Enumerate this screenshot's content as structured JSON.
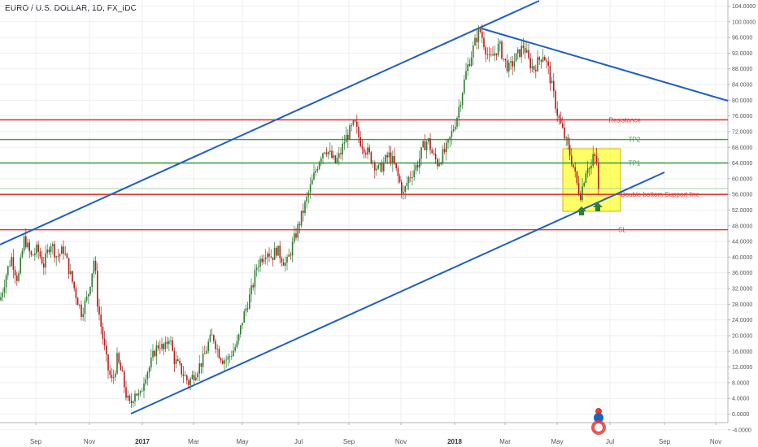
{
  "chart_data": {
    "type": "candlestick",
    "title": "EURO / U.S. DOLLAR, 1D, FX_IDC",
    "ylim": [
      -6,
      106
    ],
    "yticks": [
      "104.0000",
      "100.0000",
      "96.0000",
      "92.0000",
      "88.0000",
      "84.0000",
      "80.0000",
      "76.0000",
      "72.0000",
      "68.0000",
      "64.0000",
      "60.0000",
      "56.0000",
      "52.0000",
      "48.0000",
      "44.0000",
      "40.0000",
      "36.0000",
      "32.0000",
      "28.0000",
      "24.0000",
      "20.0000",
      "16.0000",
      "12.0000",
      "8.0000",
      "4.0000",
      "0.0000",
      "-4.0000"
    ],
    "xticks": [
      {
        "label": "Sep",
        "bold": false
      },
      {
        "label": "Nov",
        "bold": false
      },
      {
        "label": "2017",
        "bold": true
      },
      {
        "label": "Mar",
        "bold": false
      },
      {
        "label": "May",
        "bold": false
      },
      {
        "label": "Jul",
        "bold": false
      },
      {
        "label": "Sep",
        "bold": false
      },
      {
        "label": "Nov",
        "bold": false
      },
      {
        "label": "2018",
        "bold": true
      },
      {
        "label": "Mar",
        "bold": false
      },
      {
        "label": "May",
        "bold": false
      },
      {
        "label": "Jul",
        "bold": false
      },
      {
        "label": "Sep",
        "bold": false
      },
      {
        "label": "Nov",
        "bold": false
      }
    ],
    "price_path": [
      [
        0,
        29
      ],
      [
        8,
        36
      ],
      [
        14,
        40
      ],
      [
        22,
        34
      ],
      [
        30,
        45
      ],
      [
        38,
        40
      ],
      [
        46,
        42
      ],
      [
        54,
        38
      ],
      [
        62,
        44
      ],
      [
        70,
        40
      ],
      [
        78,
        42
      ],
      [
        86,
        36
      ],
      [
        94,
        30
      ],
      [
        100,
        26
      ],
      [
        108,
        30
      ],
      [
        116,
        40
      ],
      [
        120,
        28
      ],
      [
        126,
        20
      ],
      [
        132,
        12
      ],
      [
        138,
        8
      ],
      [
        144,
        14
      ],
      [
        150,
        10
      ],
      [
        156,
        4
      ],
      [
        160,
        2
      ],
      [
        166,
        6
      ],
      [
        172,
        4
      ],
      [
        178,
        10
      ],
      [
        184,
        12
      ],
      [
        190,
        16
      ],
      [
        196,
        18
      ],
      [
        202,
        16
      ],
      [
        208,
        20
      ],
      [
        214,
        14
      ],
      [
        220,
        12
      ],
      [
        226,
        10
      ],
      [
        232,
        8
      ],
      [
        238,
        10
      ],
      [
        244,
        12
      ],
      [
        250,
        14
      ],
      [
        256,
        18
      ],
      [
        262,
        20
      ],
      [
        268,
        16
      ],
      [
        274,
        14
      ],
      [
        280,
        14
      ],
      [
        286,
        16
      ],
      [
        292,
        18
      ],
      [
        298,
        24
      ],
      [
        304,
        28
      ],
      [
        310,
        32
      ],
      [
        316,
        38
      ],
      [
        322,
        40
      ],
      [
        328,
        42
      ],
      [
        334,
        40
      ],
      [
        340,
        42
      ],
      [
        346,
        40
      ],
      [
        352,
        38
      ],
      [
        358,
        42
      ],
      [
        364,
        46
      ],
      [
        370,
        50
      ],
      [
        376,
        54
      ],
      [
        382,
        58
      ],
      [
        388,
        62
      ],
      [
        394,
        66
      ],
      [
        400,
        68
      ],
      [
        406,
        66
      ],
      [
        412,
        64
      ],
      [
        418,
        66
      ],
      [
        424,
        70
      ],
      [
        430,
        72
      ],
      [
        436,
        74
      ],
      [
        442,
        70
      ],
      [
        448,
        68
      ],
      [
        454,
        66
      ],
      [
        460,
        64
      ],
      [
        466,
        62
      ],
      [
        472,
        64
      ],
      [
        478,
        66
      ],
      [
        484,
        64
      ],
      [
        490,
        60
      ],
      [
        496,
        56
      ],
      [
        502,
        60
      ],
      [
        508,
        62
      ],
      [
        514,
        64
      ],
      [
        520,
        68
      ],
      [
        526,
        70
      ],
      [
        532,
        66
      ],
      [
        538,
        64
      ],
      [
        544,
        66
      ],
      [
        550,
        68
      ],
      [
        556,
        72
      ],
      [
        562,
        76
      ],
      [
        568,
        82
      ],
      [
        574,
        88
      ],
      [
        580,
        92
      ],
      [
        586,
        96
      ],
      [
        590,
        98
      ],
      [
        596,
        94
      ],
      [
        602,
        90
      ],
      [
        608,
        92
      ],
      [
        614,
        94
      ],
      [
        620,
        90
      ],
      [
        626,
        88
      ],
      [
        632,
        90
      ],
      [
        638,
        92
      ],
      [
        644,
        94
      ],
      [
        650,
        90
      ],
      [
        656,
        88
      ],
      [
        662,
        90
      ],
      [
        668,
        92
      ],
      [
        674,
        88
      ],
      [
        680,
        82
      ],
      [
        686,
        76
      ],
      [
        692,
        72
      ],
      [
        698,
        68
      ],
      [
        704,
        64
      ],
      [
        710,
        58
      ],
      [
        714,
        56
      ],
      [
        718,
        60
      ],
      [
        722,
        64
      ],
      [
        726,
        62
      ],
      [
        730,
        66
      ],
      [
        734,
        64
      ],
      [
        736,
        56
      ]
    ],
    "levels": [
      {
        "name": "Resistance",
        "value": 75,
        "color": "#e53935"
      },
      {
        "name": "TP2",
        "value": 70,
        "color": "#43a047"
      },
      {
        "name": "TP1",
        "value": 64,
        "color": "#43a047"
      },
      {
        "name": "Double bottom  Support line",
        "value": 56,
        "color": "#e53935"
      },
      {
        "name": "SL",
        "value": 47,
        "color": "#e53935"
      }
    ],
    "thin_level": {
      "value": 57.5,
      "color": "#a5d6a7"
    },
    "trendlines_color": "#1e5fc5",
    "highlight_box": {
      "fill": "#ffff33",
      "stroke": "#d6b500"
    },
    "arrows_color": "#2e7d32",
    "grid": true,
    "up_color": "#2e7d32",
    "down_color": "#b71c1c"
  }
}
